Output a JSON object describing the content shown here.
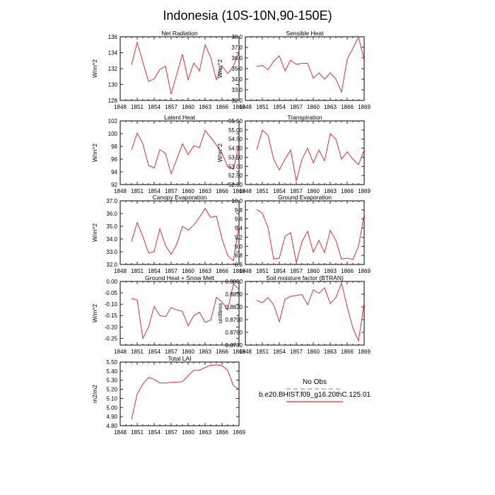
{
  "figure": {
    "title": "Indonesia (10S-10N,90-150E)",
    "legend": {
      "entries": [
        {
          "label": "No Obs",
          "color": "#9a9a9a",
          "dashed": true
        },
        {
          "label": "b.e20.BHIST.f09_g16.20thC.125.01",
          "color": "#e03030",
          "dashed": false
        }
      ]
    },
    "x_ticks": [
      "1848",
      "1851",
      "1854",
      "1857",
      "1860",
      "1863",
      "1866",
      "1869"
    ],
    "line_color": "#e03030"
  },
  "chart_data": [
    {
      "type": "line",
      "title": "Net Radiation",
      "ylabel": "W/m^2",
      "xlim": [
        1848,
        1869
      ],
      "ylim": [
        128,
        136
      ],
      "yticks": [
        "128",
        "130",
        "132",
        "134",
        "136"
      ],
      "ytick_values": [
        128,
        130,
        132,
        134,
        136
      ],
      "x": [
        1850,
        1851,
        1852,
        1853,
        1854,
        1855,
        1856,
        1857,
        1858,
        1859,
        1860,
        1861,
        1862,
        1863,
        1864,
        1865,
        1866,
        1867,
        1868,
        1869
      ],
      "series": [
        {
          "values": [
            132.5,
            135.3,
            132.8,
            130.4,
            130.7,
            131.9,
            132.3,
            128.8,
            131.3,
            133.8,
            130.6,
            132.7,
            131.7,
            135.0,
            133.4,
            130.6,
            132.3,
            131.4,
            132.3,
            134.1
          ]
        }
      ]
    },
    {
      "type": "line",
      "title": "Sensible Heat",
      "ylabel": "W/m^2",
      "xlim": [
        1848,
        1869
      ],
      "ylim": [
        32.0,
        38.0
      ],
      "yticks": [
        "32.0",
        "33.0",
        "34.0",
        "35.0",
        "36.0",
        "37.0",
        "38.0"
      ],
      "ytick_values": [
        32,
        33,
        34,
        35,
        36,
        37,
        38
      ],
      "x": [
        1850,
        1851,
        1852,
        1853,
        1854,
        1855,
        1856,
        1857,
        1858,
        1859,
        1860,
        1861,
        1862,
        1863,
        1864,
        1865,
        1866,
        1867,
        1868,
        1869
      ],
      "series": [
        {
          "values": [
            35.2,
            35.3,
            34.9,
            35.7,
            36.2,
            34.8,
            35.8,
            35.4,
            35.5,
            35.5,
            34.1,
            34.6,
            34.0,
            34.6,
            34.0,
            32.8,
            35.9,
            36.9,
            38.0,
            35.8
          ]
        }
      ]
    },
    {
      "type": "line",
      "title": "Latent Heat",
      "ylabel": "W/m^2",
      "xlim": [
        1848,
        1869
      ],
      "ylim": [
        92,
        102
      ],
      "yticks": [
        "92",
        "94",
        "96",
        "98",
        "100",
        "102"
      ],
      "ytick_values": [
        92,
        94,
        96,
        98,
        100,
        102
      ],
      "x": [
        1850,
        1851,
        1852,
        1853,
        1854,
        1855,
        1856,
        1857,
        1858,
        1859,
        1860,
        1861,
        1862,
        1863,
        1864,
        1865,
        1866,
        1867,
        1868,
        1869
      ],
      "series": [
        {
          "values": [
            97.5,
            100.1,
            98.4,
            95.0,
            94.6,
            97.5,
            96.9,
            93.7,
            96.0,
            98.4,
            96.7,
            98.1,
            97.8,
            100.5,
            99.4,
            98.2,
            96.9,
            94.8,
            94.4,
            98.3
          ]
        }
      ]
    },
    {
      "type": "line",
      "title": "Transpiration",
      "ylabel": "W/m^2",
      "xlim": [
        1848,
        1869
      ],
      "ylim": [
        52.0,
        55.5
      ],
      "yticks": [
        "52.00",
        "52.50",
        "53.00",
        "53.50",
        "54.00",
        "54.50",
        "55.00",
        "55.50"
      ],
      "ytick_values": [
        52,
        52.5,
        53,
        53.5,
        54,
        54.5,
        55,
        55.5
      ],
      "x": [
        1850,
        1851,
        1852,
        1853,
        1854,
        1855,
        1856,
        1857,
        1858,
        1859,
        1860,
        1861,
        1862,
        1863,
        1864,
        1865,
        1866,
        1867,
        1868,
        1869
      ],
      "series": [
        {
          "values": [
            53.9,
            55.0,
            54.7,
            53.4,
            52.8,
            53.4,
            53.9,
            52.2,
            53.4,
            54.0,
            53.2,
            53.9,
            53.3,
            54.8,
            54.5,
            53.4,
            53.8,
            53.4,
            53.1,
            53.9
          ]
        }
      ]
    },
    {
      "type": "line",
      "title": "Canopy Evaporation",
      "ylabel": "W/m^2",
      "xlim": [
        1848,
        1869
      ],
      "ylim": [
        32.0,
        37.0
      ],
      "yticks": [
        "32.0",
        "33.0",
        "34.0",
        "35.0",
        "36.0",
        "37.0"
      ],
      "ytick_values": [
        32,
        33,
        34,
        35,
        36,
        37
      ],
      "x": [
        1850,
        1851,
        1852,
        1853,
        1854,
        1855,
        1856,
        1857,
        1858,
        1859,
        1860,
        1861,
        1862,
        1863,
        1864,
        1865,
        1866,
        1867,
        1868,
        1869
      ],
      "series": [
        {
          "values": [
            33.8,
            35.3,
            34.2,
            32.9,
            33.0,
            34.8,
            33.5,
            32.8,
            33.6,
            35.0,
            34.7,
            35.1,
            35.7,
            36.4,
            35.7,
            35.8,
            34.0,
            32.7,
            32.3,
            35.1
          ]
        }
      ]
    },
    {
      "type": "line",
      "title": "Ground Evaporation",
      "ylabel": "",
      "xlim": [
        1848,
        1869
      ],
      "ylim": [
        8.6,
        10.0
      ],
      "yticks": [
        "8.6",
        "8.8",
        "9.0",
        "9.2",
        "9.4",
        "9.6",
        "9.8",
        "10.0"
      ],
      "ytick_values": [
        8.6,
        8.8,
        9.0,
        9.2,
        9.4,
        9.6,
        9.8,
        10.0
      ],
      "x": [
        1850,
        1851,
        1852,
        1853,
        1854,
        1855,
        1856,
        1857,
        1858,
        1859,
        1860,
        1861,
        1862,
        1863,
        1864,
        1865,
        1866,
        1867,
        1868,
        1869
      ],
      "series": [
        {
          "values": [
            9.81,
            9.73,
            9.41,
            8.72,
            8.74,
            9.22,
            9.3,
            8.64,
            9.1,
            9.33,
            8.87,
            9.13,
            8.86,
            9.35,
            9.13,
            8.72,
            8.74,
            8.71,
            9.0,
            9.7
          ]
        }
      ]
    },
    {
      "type": "line",
      "title": "Ground Heat + Snow Melt",
      "ylabel": "W/m^2",
      "xlim": [
        1848,
        1869
      ],
      "ylim": [
        -0.28,
        0.0
      ],
      "yticks": [
        "-0.25",
        "-0.20",
        "-0.15",
        "-0.10",
        "-0.05",
        "0.00"
      ],
      "ytick_values": [
        -0.25,
        -0.2,
        -0.15,
        -0.1,
        -0.05,
        0.0
      ],
      "x": [
        1850,
        1851,
        1852,
        1853,
        1854,
        1855,
        1856,
        1857,
        1858,
        1859,
        1860,
        1861,
        1862,
        1863,
        1864,
        1865,
        1866,
        1867,
        1868,
        1869
      ],
      "series": [
        {
          "values": [
            -0.075,
            -0.082,
            -0.25,
            -0.2,
            -0.11,
            -0.15,
            -0.155,
            -0.115,
            -0.125,
            -0.132,
            -0.195,
            -0.15,
            -0.135,
            -0.18,
            -0.17,
            -0.07,
            -0.09,
            -0.125,
            -0.01,
            -0.035
          ]
        }
      ]
    },
    {
      "type": "line",
      "title": "Soil moisture factor (BTRAN)",
      "ylabel": "unitless",
      "xlim": [
        1848,
        1869
      ],
      "ylim": [
        0.873,
        0.888
      ],
      "yticks": [
        "0.8730",
        "0.8760",
        "0.8790",
        "0.8820",
        "0.8850",
        "0.8880"
      ],
      "ytick_values": [
        0.873,
        0.876,
        0.879,
        0.882,
        0.885,
        0.888
      ],
      "x": [
        1850,
        1851,
        1852,
        1853,
        1854,
        1855,
        1856,
        1857,
        1858,
        1859,
        1860,
        1861,
        1862,
        1863,
        1864,
        1865,
        1866,
        1867,
        1868,
        1869
      ],
      "series": [
        {
          "values": [
            0.8835,
            0.883,
            0.8842,
            0.8825,
            0.8785,
            0.8838,
            0.8845,
            0.8847,
            0.8849,
            0.8825,
            0.886,
            0.8852,
            0.8865,
            0.8828,
            0.8842,
            0.8876,
            0.882,
            0.877,
            0.874,
            0.883
          ]
        }
      ]
    },
    {
      "type": "line",
      "title": "Total LAI",
      "ylabel": "m2/m2",
      "xlim": [
        1848,
        1869
      ],
      "ylim": [
        4.8,
        5.5
      ],
      "yticks": [
        "4.80",
        "4.90",
        "5.00",
        "5.10",
        "5.20",
        "5.30",
        "5.40",
        "5.50"
      ],
      "ytick_values": [
        4.8,
        4.9,
        5.0,
        5.1,
        5.2,
        5.3,
        5.4,
        5.5
      ],
      "x": [
        1850,
        1851,
        1852,
        1853,
        1854,
        1855,
        1856,
        1857,
        1858,
        1859,
        1860,
        1861,
        1862,
        1863,
        1864,
        1865,
        1866,
        1867,
        1868,
        1869
      ],
      "series": [
        {
          "values": [
            4.87,
            5.15,
            5.26,
            5.33,
            5.31,
            5.27,
            5.27,
            5.275,
            5.28,
            5.285,
            5.35,
            5.41,
            5.41,
            5.44,
            5.465,
            5.47,
            5.46,
            5.41,
            5.24,
            5.2
          ]
        }
      ]
    }
  ]
}
